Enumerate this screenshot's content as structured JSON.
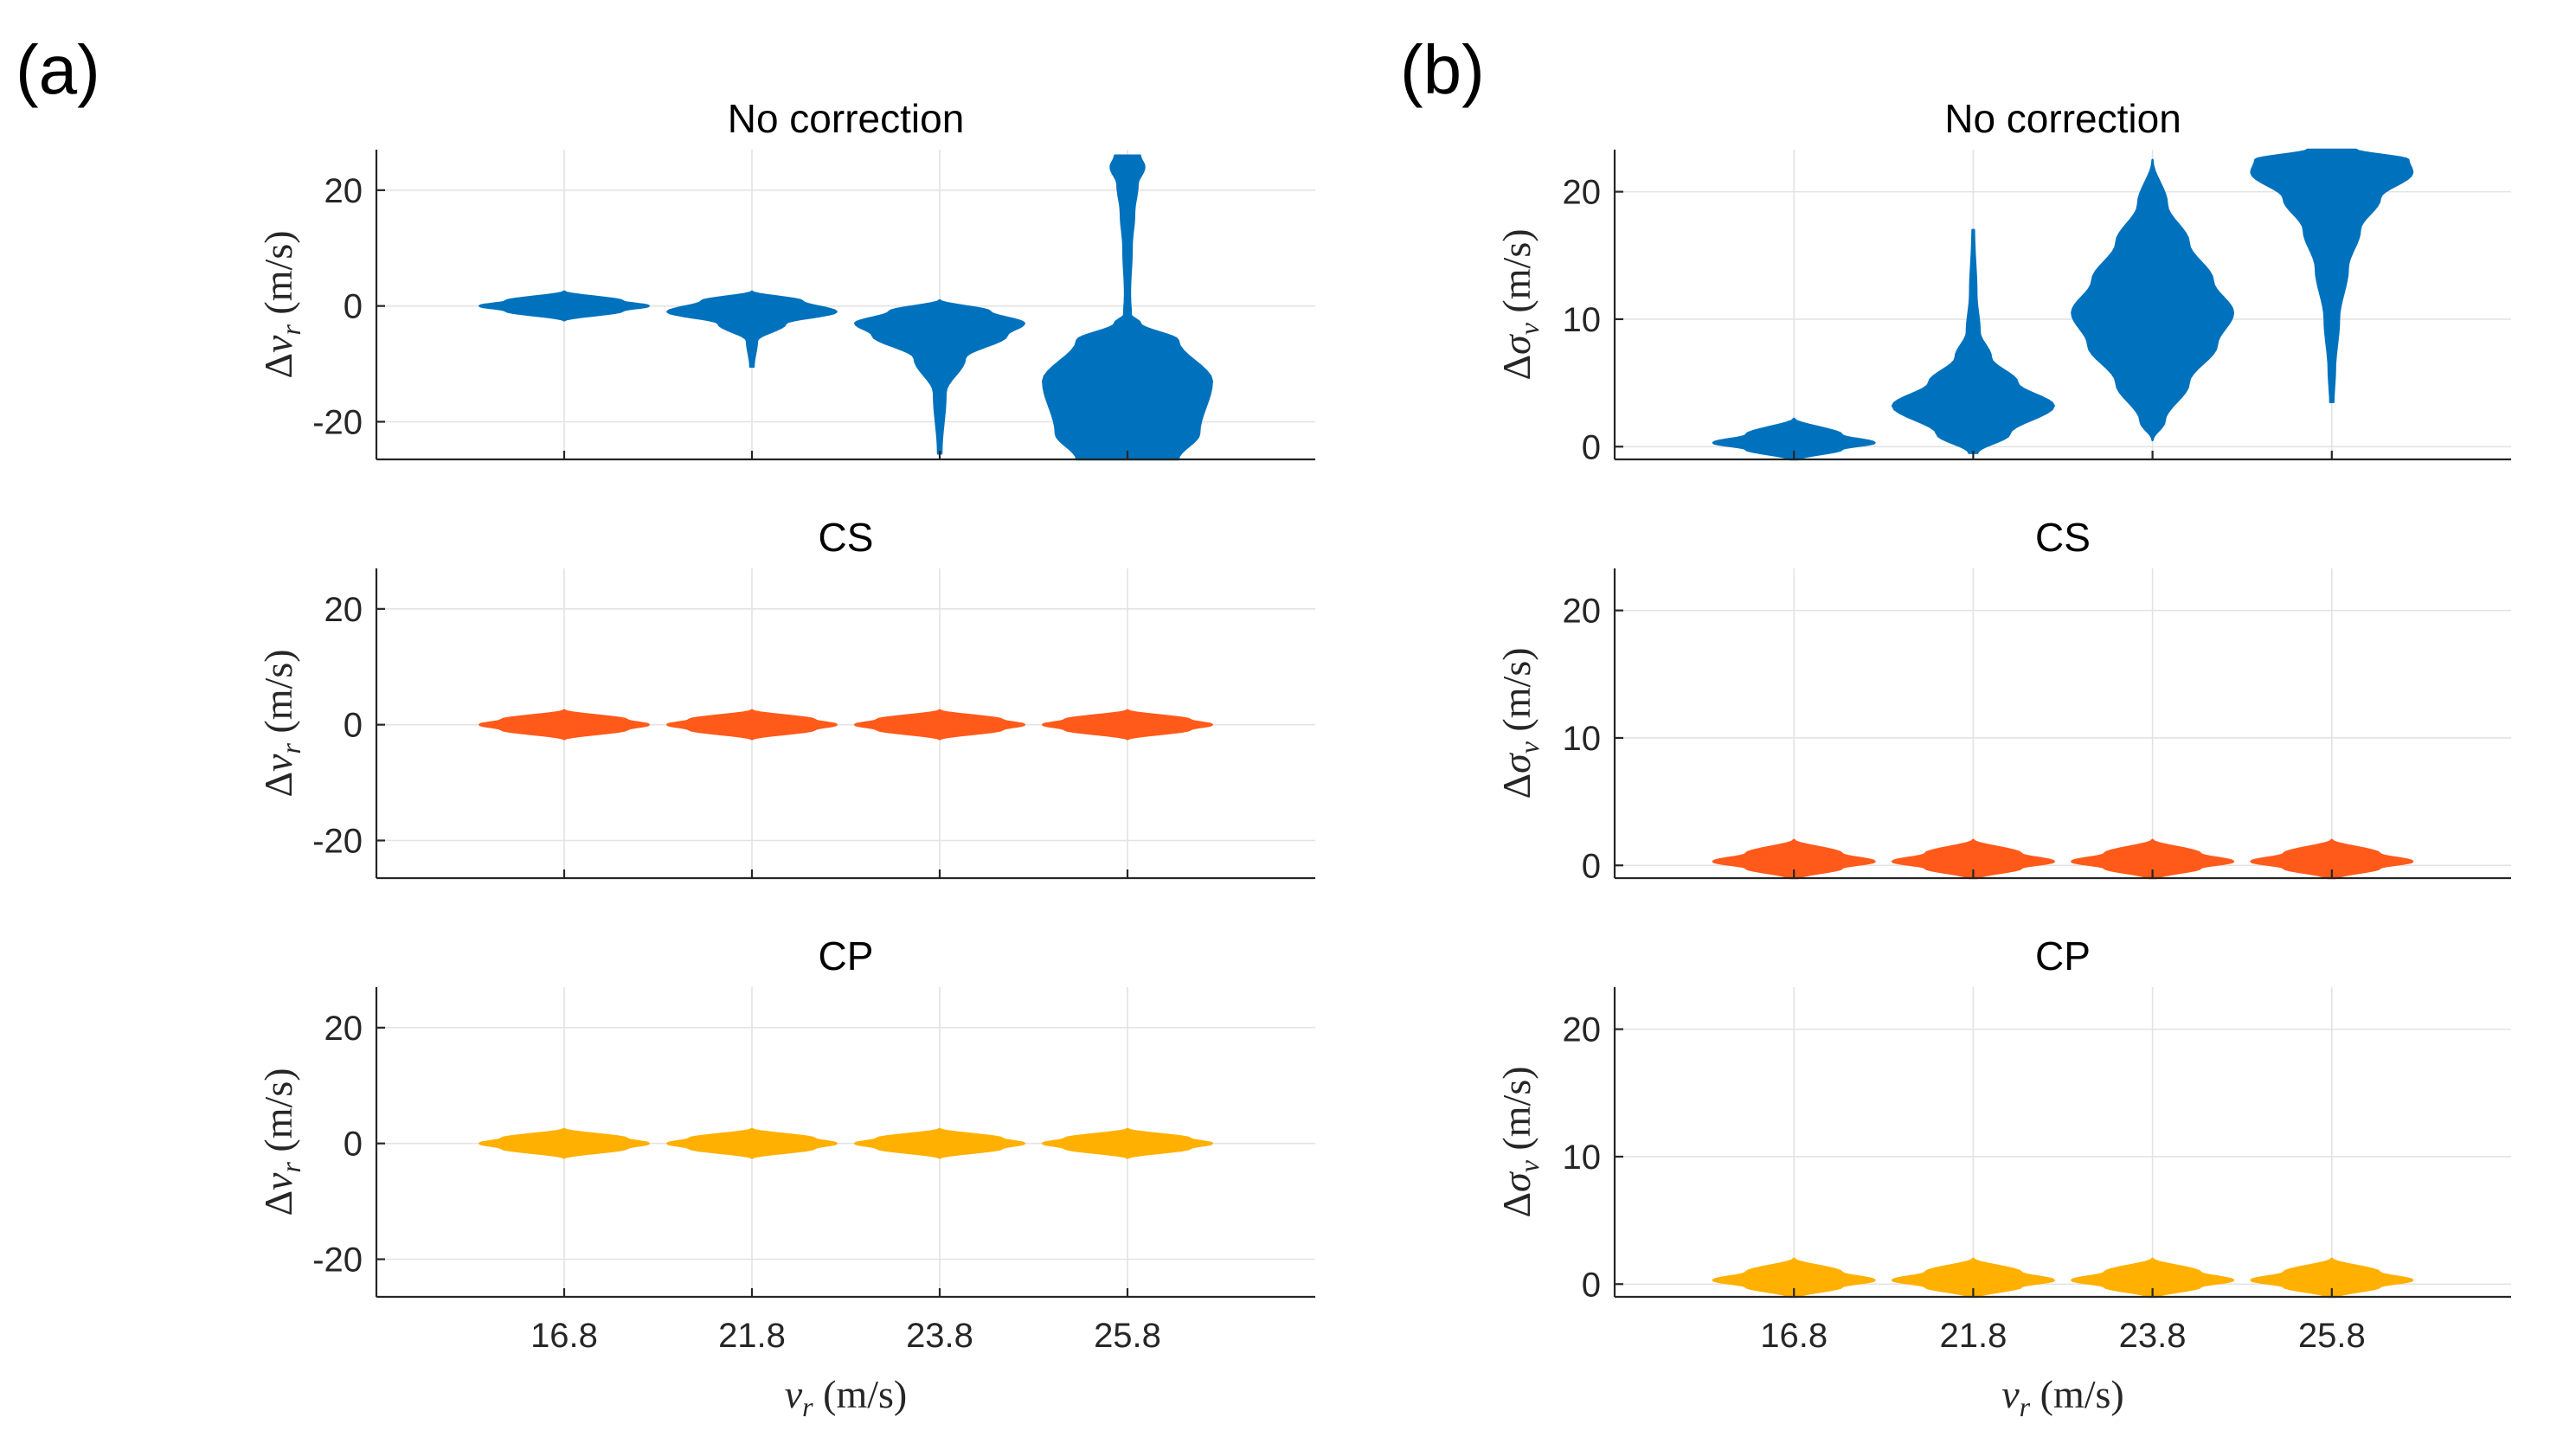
{
  "panel_labels": [
    "(a)",
    "(b)"
  ],
  "colors": {
    "no_correction": "#0072BD",
    "cs": "#FF5A1A",
    "cp": "#FFB000"
  },
  "chart_data": [
    {
      "type": "violin",
      "panel": "a",
      "title": "No correction",
      "ylabel": "Δv_r (m/s)",
      "xlabel": "",
      "ylim": [
        -26.5,
        27
      ],
      "yticks": [
        -20,
        0,
        20
      ],
      "categories": [
        "16.8",
        "21.8",
        "23.8",
        "25.8"
      ],
      "show_xticklabels": false,
      "grid": true,
      "color": "#0072BD",
      "violins": [
        {
          "category": "16.8",
          "min": -2.5,
          "max": 2.5,
          "median": 0,
          "profile": [
            [
              -2.5,
              0
            ],
            [
              -0.8,
              0.7
            ],
            [
              0,
              1
            ],
            [
              0.8,
              0.7
            ],
            [
              2.5,
              0
            ]
          ]
        },
        {
          "category": "21.8",
          "min": -10.5,
          "max": 2.5,
          "median": -1,
          "profile": [
            [
              -10.5,
              0.02
            ],
            [
              -6,
              0.06
            ],
            [
              -3,
              0.4
            ],
            [
              -1,
              1
            ],
            [
              0.8,
              0.6
            ],
            [
              2.5,
              0
            ]
          ]
        },
        {
          "category": "23.8",
          "min": -25.5,
          "max": 1,
          "median": -3,
          "profile": [
            [
              -25.5,
              0.02
            ],
            [
              -15,
              0.07
            ],
            [
              -9,
              0.3
            ],
            [
              -5,
              0.8
            ],
            [
              -3,
              1
            ],
            [
              -1,
              0.6
            ],
            [
              1,
              0
            ]
          ]
        },
        {
          "category": "25.8",
          "min": -26.5,
          "max": 26,
          "median": -13,
          "profile": [
            [
              -26.5,
              0.6
            ],
            [
              -22,
              0.85
            ],
            [
              -13,
              1
            ],
            [
              -6,
              0.6
            ],
            [
              -3,
              0.15
            ],
            [
              -1.5,
              0.04
            ],
            [
              2,
              0.03
            ],
            [
              10,
              0.05
            ],
            [
              16,
              0.08
            ],
            [
              21,
              0.12
            ],
            [
              24,
              0.2
            ],
            [
              26,
              0.15
            ]
          ]
        }
      ]
    },
    {
      "type": "violin",
      "panel": "a",
      "title": "CS",
      "ylabel": "Δv_r (m/s)",
      "xlabel": "",
      "ylim": [
        -26.5,
        27
      ],
      "yticks": [
        -20,
        0,
        20
      ],
      "categories": [
        "16.8",
        "21.8",
        "23.8",
        "25.8"
      ],
      "show_xticklabels": false,
      "grid": true,
      "color": "#FF5A1A",
      "violins": [
        {
          "category": "16.8",
          "min": -2.5,
          "max": 2.5,
          "median": 0,
          "profile": [
            [
              -2.5,
              0
            ],
            [
              -0.8,
              0.75
            ],
            [
              0,
              1
            ],
            [
              0.8,
              0.75
            ],
            [
              2.5,
              0
            ]
          ]
        },
        {
          "category": "21.8",
          "min": -2.5,
          "max": 2.5,
          "median": 0,
          "profile": [
            [
              -2.5,
              0
            ],
            [
              -0.8,
              0.75
            ],
            [
              0,
              1
            ],
            [
              0.8,
              0.75
            ],
            [
              2.5,
              0
            ]
          ]
        },
        {
          "category": "23.8",
          "min": -2.5,
          "max": 2.5,
          "median": 0,
          "profile": [
            [
              -2.5,
              0
            ],
            [
              -0.8,
              0.75
            ],
            [
              0,
              1
            ],
            [
              0.8,
              0.75
            ],
            [
              2.5,
              0
            ]
          ]
        },
        {
          "category": "25.8",
          "min": -2.5,
          "max": 2.5,
          "median": 0,
          "profile": [
            [
              -2.5,
              0
            ],
            [
              -0.8,
              0.75
            ],
            [
              0,
              1
            ],
            [
              0.8,
              0.75
            ],
            [
              2.5,
              0
            ]
          ]
        }
      ]
    },
    {
      "type": "violin",
      "panel": "a",
      "title": "CP",
      "ylabel": "Δv_r (m/s)",
      "xlabel": "v_r (m/s)",
      "ylim": [
        -26.5,
        27
      ],
      "yticks": [
        -20,
        0,
        20
      ],
      "categories": [
        "16.8",
        "21.8",
        "23.8",
        "25.8"
      ],
      "show_xticklabels": true,
      "grid": true,
      "color": "#FFB000",
      "violins": [
        {
          "category": "16.8",
          "min": -2.5,
          "max": 2.5,
          "median": 0,
          "profile": [
            [
              -2.5,
              0
            ],
            [
              -0.8,
              0.75
            ],
            [
              0,
              1
            ],
            [
              0.8,
              0.75
            ],
            [
              2.5,
              0
            ]
          ]
        },
        {
          "category": "21.8",
          "min": -2.5,
          "max": 2.5,
          "median": 0,
          "profile": [
            [
              -2.5,
              0
            ],
            [
              -0.8,
              0.75
            ],
            [
              0,
              1
            ],
            [
              0.8,
              0.75
            ],
            [
              2.5,
              0
            ]
          ]
        },
        {
          "category": "23.8",
          "min": -2.5,
          "max": 2.5,
          "median": 0,
          "profile": [
            [
              -2.5,
              0
            ],
            [
              -0.8,
              0.75
            ],
            [
              0,
              1
            ],
            [
              0.8,
              0.75
            ],
            [
              2.5,
              0
            ]
          ]
        },
        {
          "category": "25.8",
          "min": -2.5,
          "max": 2.5,
          "median": 0,
          "profile": [
            [
              -2.5,
              0
            ],
            [
              -0.8,
              0.75
            ],
            [
              0,
              1
            ],
            [
              0.8,
              0.75
            ],
            [
              2.5,
              0
            ]
          ]
        }
      ]
    },
    {
      "type": "violin",
      "panel": "b",
      "title": "No correction",
      "ylabel": "Δσ_v (m/s)",
      "xlabel": "",
      "ylim": [
        -1,
        23.3
      ],
      "yticks": [
        0,
        10,
        20
      ],
      "categories": [
        "16.8",
        "21.8",
        "23.8",
        "25.8"
      ],
      "show_xticklabels": false,
      "grid": true,
      "color": "#0072BD",
      "violins": [
        {
          "category": "16.8",
          "min": -1,
          "max": 2.2,
          "median": 0.3,
          "profile": [
            [
              -1,
              0.05
            ],
            [
              -0.2,
              0.6
            ],
            [
              0.3,
              1
            ],
            [
              0.9,
              0.6
            ],
            [
              2.2,
              0
            ]
          ]
        },
        {
          "category": "21.8",
          "min": -0.5,
          "max": 17,
          "median": 3.2,
          "profile": [
            [
              -0.5,
              0.05
            ],
            [
              1,
              0.45
            ],
            [
              3.2,
              1
            ],
            [
              5,
              0.55
            ],
            [
              7,
              0.22
            ],
            [
              9,
              0.08
            ],
            [
              12,
              0.04
            ],
            [
              17,
              0.01
            ]
          ]
        },
        {
          "category": "23.8",
          "min": 0.5,
          "max": 22.5,
          "median": 10.5,
          "profile": [
            [
              0.5,
              0
            ],
            [
              2,
              0.15
            ],
            [
              5,
              0.45
            ],
            [
              8,
              0.8
            ],
            [
              10.5,
              1
            ],
            [
              13,
              0.75
            ],
            [
              16,
              0.45
            ],
            [
              19,
              0.18
            ],
            [
              22.5,
              0
            ]
          ]
        },
        {
          "category": "25.8",
          "min": 3.5,
          "max": 23.3,
          "median": 21.5,
          "profile": [
            [
              3.5,
              0.02
            ],
            [
              6,
              0.04
            ],
            [
              10,
              0.09
            ],
            [
              14,
              0.2
            ],
            [
              17,
              0.35
            ],
            [
              19.5,
              0.6
            ],
            [
              21.5,
              1
            ],
            [
              22.5,
              0.95
            ],
            [
              23.3,
              0.3
            ]
          ]
        }
      ]
    },
    {
      "type": "violin",
      "panel": "b",
      "title": "CS",
      "ylabel": "Δσ_v (m/s)",
      "xlabel": "",
      "ylim": [
        -1,
        23.3
      ],
      "yticks": [
        0,
        10,
        20
      ],
      "categories": [
        "16.8",
        "21.8",
        "23.8",
        "25.8"
      ],
      "show_xticklabels": false,
      "grid": true,
      "color": "#FF5A1A",
      "violins": [
        {
          "category": "16.8",
          "min": -1,
          "max": 2,
          "median": 0.3,
          "profile": [
            [
              -1,
              0.05
            ],
            [
              -0.2,
              0.6
            ],
            [
              0.3,
              1
            ],
            [
              0.9,
              0.6
            ],
            [
              2,
              0
            ]
          ]
        },
        {
          "category": "21.8",
          "min": -1,
          "max": 2,
          "median": 0.3,
          "profile": [
            [
              -1,
              0.05
            ],
            [
              -0.2,
              0.6
            ],
            [
              0.3,
              1
            ],
            [
              0.9,
              0.6
            ],
            [
              2,
              0
            ]
          ]
        },
        {
          "category": "23.8",
          "min": -1,
          "max": 2,
          "median": 0.3,
          "profile": [
            [
              -1,
              0.05
            ],
            [
              -0.2,
              0.6
            ],
            [
              0.3,
              1
            ],
            [
              0.9,
              0.6
            ],
            [
              2,
              0
            ]
          ]
        },
        {
          "category": "25.8",
          "min": -1,
          "max": 2,
          "median": 0.3,
          "profile": [
            [
              -1,
              0.05
            ],
            [
              -0.2,
              0.6
            ],
            [
              0.3,
              1
            ],
            [
              0.9,
              0.6
            ],
            [
              2,
              0
            ]
          ]
        }
      ]
    },
    {
      "type": "violin",
      "panel": "b",
      "title": "CP",
      "ylabel": "Δσ_v (m/s)",
      "xlabel": "v_r (m/s)",
      "ylim": [
        -1,
        23.3
      ],
      "yticks": [
        0,
        10,
        20
      ],
      "categories": [
        "16.8",
        "21.8",
        "23.8",
        "25.8"
      ],
      "show_xticklabels": true,
      "grid": true,
      "color": "#FFB000",
      "violins": [
        {
          "category": "16.8",
          "min": -1,
          "max": 2,
          "median": 0.3,
          "profile": [
            [
              -1,
              0.05
            ],
            [
              -0.2,
              0.6
            ],
            [
              0.3,
              1
            ],
            [
              0.9,
              0.6
            ],
            [
              2,
              0
            ]
          ]
        },
        {
          "category": "21.8",
          "min": -1,
          "max": 2,
          "median": 0.3,
          "profile": [
            [
              -1,
              0.05
            ],
            [
              -0.2,
              0.6
            ],
            [
              0.3,
              1
            ],
            [
              0.9,
              0.6
            ],
            [
              2,
              0
            ]
          ]
        },
        {
          "category": "23.8",
          "min": -1,
          "max": 2,
          "median": 0.3,
          "profile": [
            [
              -1,
              0.05
            ],
            [
              -0.2,
              0.6
            ],
            [
              0.3,
              1
            ],
            [
              0.9,
              0.6
            ],
            [
              2,
              0
            ]
          ]
        },
        {
          "category": "25.8",
          "min": -1,
          "max": 2,
          "median": 0.3,
          "profile": [
            [
              -1,
              0.05
            ],
            [
              -0.2,
              0.6
            ],
            [
              0.3,
              1
            ],
            [
              0.9,
              0.6
            ],
            [
              2,
              0
            ]
          ]
        }
      ]
    }
  ]
}
